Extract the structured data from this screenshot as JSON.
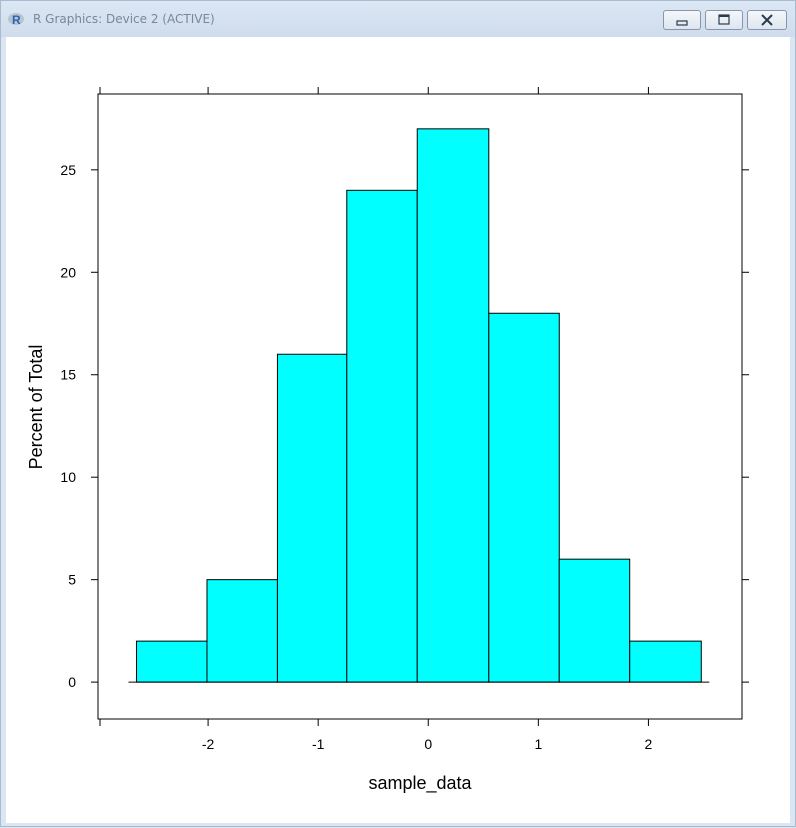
{
  "window": {
    "title": "R Graphics: Device 2 (ACTIVE)",
    "icons": {
      "app": "r-logo-icon",
      "minimize": "minimize-icon",
      "maximize": "maximize-icon",
      "close": "close-icon"
    }
  },
  "chart_data": {
    "type": "bar",
    "subtype": "histogram",
    "xlabel": "sample_data",
    "ylabel": "Percent of Total",
    "bins": [
      {
        "x0": -2.65,
        "x1": -2.01,
        "value": 2
      },
      {
        "x0": -2.01,
        "x1": -1.37,
        "value": 5
      },
      {
        "x0": -1.37,
        "x1": -0.74,
        "value": 16
      },
      {
        "x0": -0.74,
        "x1": -0.1,
        "value": 24
      },
      {
        "x0": -0.1,
        "x1": 0.55,
        "value": 27
      },
      {
        "x0": 0.55,
        "x1": 1.19,
        "value": 18
      },
      {
        "x0": 1.19,
        "x1": 1.83,
        "value": 6
      },
      {
        "x0": 1.83,
        "x1": 2.48,
        "value": 2
      }
    ],
    "x_ticks": [
      "-2",
      "-1",
      "0",
      "1",
      "2"
    ],
    "y_ticks": [
      "0",
      "5",
      "10",
      "15",
      "20",
      "25"
    ],
    "xlim": [
      -3.0,
      2.85
    ],
    "ylim": [
      -1.8,
      28.7
    ],
    "bar_color": "#00FFFF",
    "bar_edge_color": "#000000",
    "grid": false
  }
}
